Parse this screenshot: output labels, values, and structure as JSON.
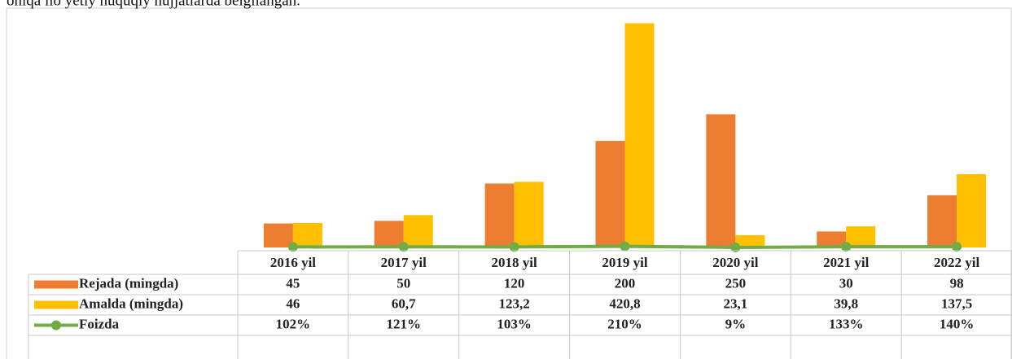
{
  "caption": "ohiqa ilo yetiy huquqiy hujjatlarda belgilangan.",
  "chart_data": {
    "type": "bar",
    "categories": [
      "2016 yil",
      "2017 yil",
      "2018 yil",
      "2019 yil",
      "2020 yil",
      "2021 yil",
      "2022 yil"
    ],
    "series": [
      {
        "name": "Rejada (mingda)",
        "color": "#ED7D31",
        "values": [
          45,
          50,
          120,
          200,
          250,
          30,
          98
        ],
        "value_labels": [
          "45",
          "50",
          "120",
          "200",
          "250",
          "30",
          "98"
        ]
      },
      {
        "name": "Amalda (mingda)",
        "color": "#FFC000",
        "values": [
          46,
          60.7,
          123.2,
          420.8,
          23.1,
          39.8,
          137.5
        ],
        "value_labels": [
          "46",
          "60,7",
          "123,2",
          "420,8",
          "23,1",
          "39,8",
          "137,5"
        ]
      },
      {
        "name": "Foizda",
        "color": "#70AD47",
        "type": "line",
        "axis": "y2",
        "values": [
          102,
          121,
          103,
          210,
          9,
          133,
          140
        ],
        "value_labels": [
          "102%",
          "121%",
          "103%",
          "210%",
          "9%",
          "133%",
          "140%"
        ]
      }
    ],
    "ylim": [
      0,
      440
    ],
    "y2lim": [
      0,
      44000
    ],
    "data_table": true
  }
}
